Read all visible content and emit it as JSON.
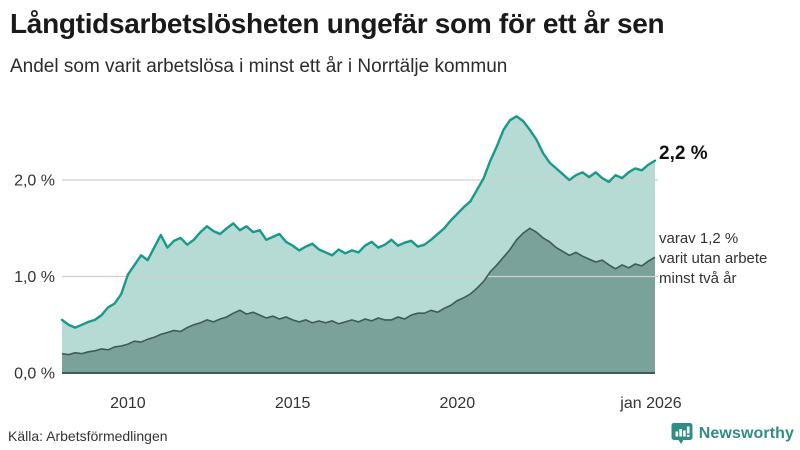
{
  "header": {
    "title": "Långtidsarbetslösheten ungefär som för ett år sen",
    "subtitle": "Andel som varit arbetslösa i minst ett år i Norrtälje kommun"
  },
  "chart_data": {
    "type": "area",
    "title": "Långtidsarbetslösheten ungefär som för ett år sen",
    "subtitle": "Andel som varit arbetslösa i minst ett år i Norrtälje kommun",
    "unit": "%",
    "x_start": 2008.0,
    "x_step": 0.2,
    "x_end": 2026.0,
    "ylim": [
      0,
      2.75
    ],
    "grid": "horizontal",
    "legend": "direct-labels",
    "series": [
      {
        "name": "Andel arbetslösa minst ett år",
        "line_color": "#18998b",
        "fill_color": "#b6dad4",
        "end_value_label": "2,2 %",
        "values": [
          0.55,
          0.5,
          0.47,
          0.5,
          0.53,
          0.55,
          0.6,
          0.68,
          0.72,
          0.82,
          1.02,
          1.12,
          1.22,
          1.17,
          1.3,
          1.43,
          1.3,
          1.37,
          1.4,
          1.33,
          1.38,
          1.46,
          1.52,
          1.47,
          1.44,
          1.5,
          1.55,
          1.48,
          1.52,
          1.46,
          1.48,
          1.38,
          1.41,
          1.44,
          1.36,
          1.32,
          1.27,
          1.31,
          1.34,
          1.28,
          1.25,
          1.22,
          1.28,
          1.24,
          1.27,
          1.25,
          1.32,
          1.36,
          1.3,
          1.33,
          1.38,
          1.32,
          1.35,
          1.37,
          1.31,
          1.33,
          1.38,
          1.44,
          1.5,
          1.58,
          1.65,
          1.72,
          1.78,
          1.9,
          2.02,
          2.2,
          2.35,
          2.52,
          2.62,
          2.66,
          2.61,
          2.52,
          2.42,
          2.28,
          2.18,
          2.12,
          2.06,
          2.0,
          2.05,
          2.08,
          2.03,
          2.08,
          2.02,
          1.98,
          2.05,
          2.02,
          2.08,
          2.12,
          2.1,
          2.16,
          2.2
        ]
      },
      {
        "name": "varav varit utan arbete minst två år",
        "line_color": "#3f5b55",
        "fill_color": "#7aa29b",
        "end_value_label": "varav 1,2 % varit utan arbete minst två år",
        "values": [
          0.2,
          0.19,
          0.21,
          0.2,
          0.22,
          0.23,
          0.25,
          0.24,
          0.27,
          0.28,
          0.3,
          0.33,
          0.32,
          0.35,
          0.37,
          0.4,
          0.42,
          0.44,
          0.43,
          0.47,
          0.5,
          0.52,
          0.55,
          0.53,
          0.56,
          0.58,
          0.62,
          0.65,
          0.61,
          0.63,
          0.6,
          0.57,
          0.59,
          0.56,
          0.58,
          0.55,
          0.53,
          0.55,
          0.52,
          0.54,
          0.52,
          0.54,
          0.51,
          0.53,
          0.55,
          0.53,
          0.56,
          0.54,
          0.57,
          0.55,
          0.55,
          0.58,
          0.56,
          0.6,
          0.62,
          0.62,
          0.65,
          0.63,
          0.67,
          0.7,
          0.75,
          0.78,
          0.82,
          0.88,
          0.95,
          1.05,
          1.12,
          1.2,
          1.28,
          1.38,
          1.45,
          1.5,
          1.46,
          1.4,
          1.36,
          1.3,
          1.26,
          1.22,
          1.25,
          1.21,
          1.18,
          1.15,
          1.17,
          1.12,
          1.08,
          1.12,
          1.09,
          1.13,
          1.11,
          1.16,
          1.2
        ]
      }
    ],
    "yticks": [
      {
        "label": "0,0 %",
        "value": 0
      },
      {
        "label": "1,0 %",
        "value": 1
      },
      {
        "label": "2,0 %",
        "value": 2
      }
    ],
    "xticks": [
      {
        "label": "2010",
        "value": 2010
      },
      {
        "label": "2015",
        "value": 2015
      },
      {
        "label": "2020",
        "value": 2020
      },
      {
        "label": "jan 2026",
        "value": 2026
      }
    ]
  },
  "annotations": {
    "end_value_primary": "2,2 %",
    "secondary_line1": "varav 1,2 %",
    "secondary_line2": "varit utan arbete",
    "secondary_line3": "minst två år"
  },
  "footer": {
    "source": "Källa: Arbetsförmedlingen",
    "brand_name": "Newsworthy"
  },
  "colors": {
    "line_primary": "#18998b",
    "fill_primary": "#b6dad4",
    "line_secondary": "#3f5b55",
    "fill_secondary": "#7aa29b",
    "gridline": "#cfcfcf",
    "brand_teal": "#2f8d83",
    "text_dark": "#1a1a1a"
  }
}
